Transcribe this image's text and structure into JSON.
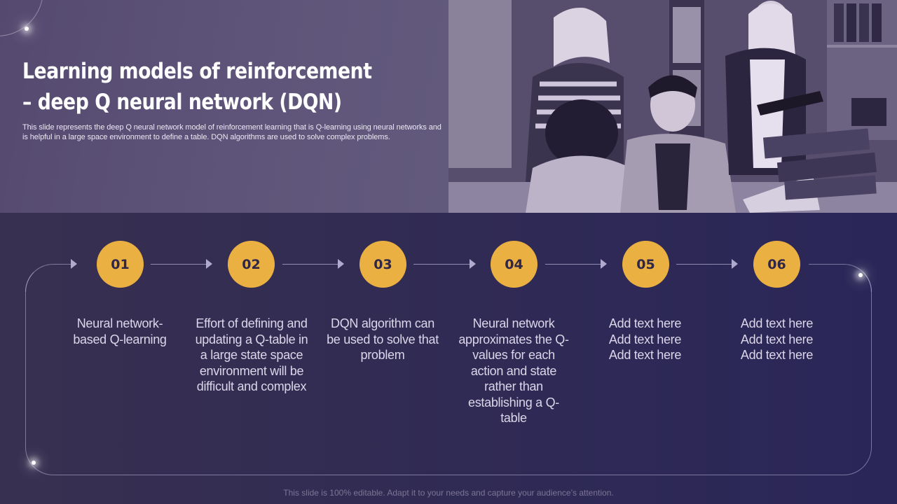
{
  "slide": {
    "title": "Learning models of reinforcement – deep Q neural network (DQN)",
    "description": "This slide represents the deep Q neural network model of reinforcement learning that is Q-learning using neural networks and is helpful in a large space environment to define a table. DQN algorithms are used to solve complex problems.",
    "footer": "This slide is 100% editable. Adapt it to your needs and capture your audience’s attention."
  },
  "steps": [
    {
      "number": "01",
      "text": "Neural network-based Q-learning"
    },
    {
      "number": "02",
      "text": "Effort of defining and updating a Q-table in a large state space environment will be difficult and complex"
    },
    {
      "number": "03",
      "text": "DQN algorithm can be used to solve that problem"
    },
    {
      "number": "04",
      "text": "Neural network approximates the Q-values for each action and state rather than establishing a Q-table"
    },
    {
      "number": "05",
      "text": "Add text here Add text here Add text here"
    },
    {
      "number": "06",
      "text": "Add text here Add text here Add text here"
    }
  ],
  "colors": {
    "header_band": "#5f557a",
    "process_band": "#2f2a55",
    "step_circle": "#ebb042",
    "step_number": "#2f2648",
    "step_text": "#dcd6ea"
  }
}
